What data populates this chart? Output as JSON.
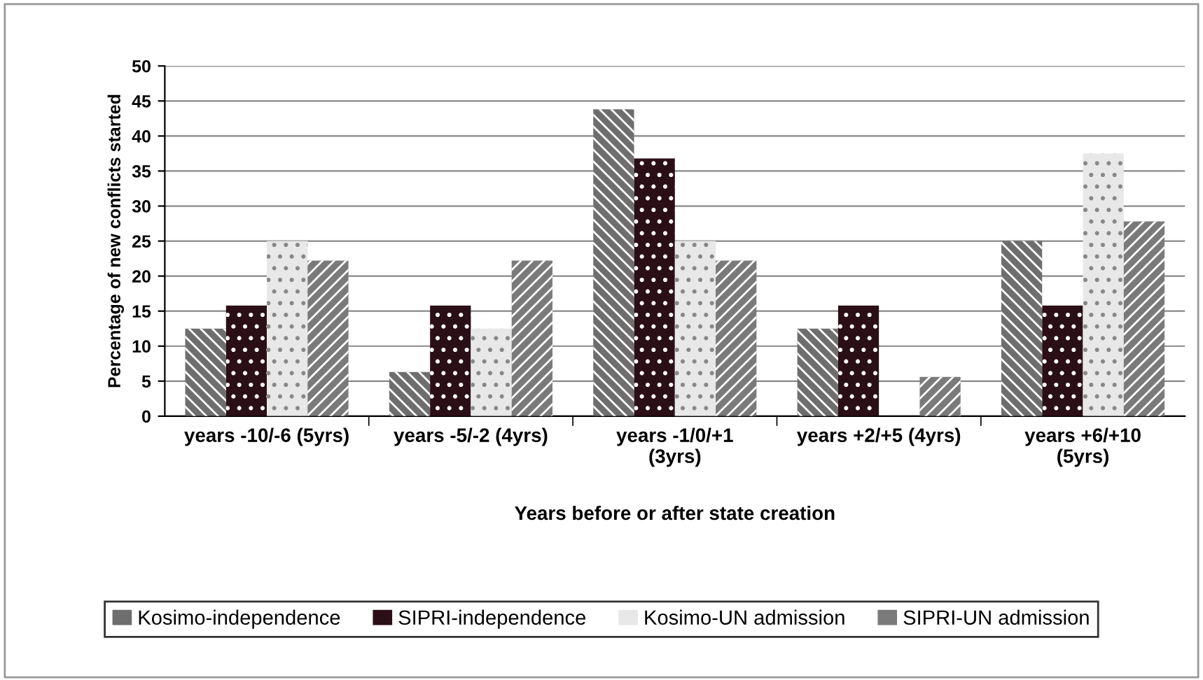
{
  "chart_data": {
    "type": "bar",
    "xlabel": "Years before or after state creation",
    "ylabel": "Percentage of new conflicts started",
    "categories": [
      "years -10/-6 (5yrs)",
      "years -5/-2 (4yrs)",
      "years -1/0/+1\n(3yrs)",
      "years +2/+5 (4yrs)",
      "years +6/+10\n(5yrs)"
    ],
    "series": [
      {
        "name": "Kosimo-independence",
        "color": "#6e6e6e",
        "values": [
          12.5,
          6.3,
          43.8,
          12.5,
          25
        ]
      },
      {
        "name": "SIPRI-independence",
        "color": "#2b0f16",
        "values": [
          15.8,
          15.8,
          36.8,
          15.8,
          15.8
        ]
      },
      {
        "name": "Kosimo-UN admission",
        "color": "#e8e8e8",
        "values": [
          25,
          12.5,
          25,
          0,
          37.5
        ]
      },
      {
        "name": "SIPRI-UN admission",
        "color": "#7a7a7a",
        "values": [
          22.2,
          22.2,
          22.2,
          5.6,
          27.8
        ]
      }
    ],
    "ylim": [
      0,
      50
    ],
    "yticks": [
      0,
      5,
      10,
      15,
      20,
      25,
      30,
      35,
      40,
      45,
      50
    ],
    "grid": "y",
    "legend": "bottom"
  }
}
